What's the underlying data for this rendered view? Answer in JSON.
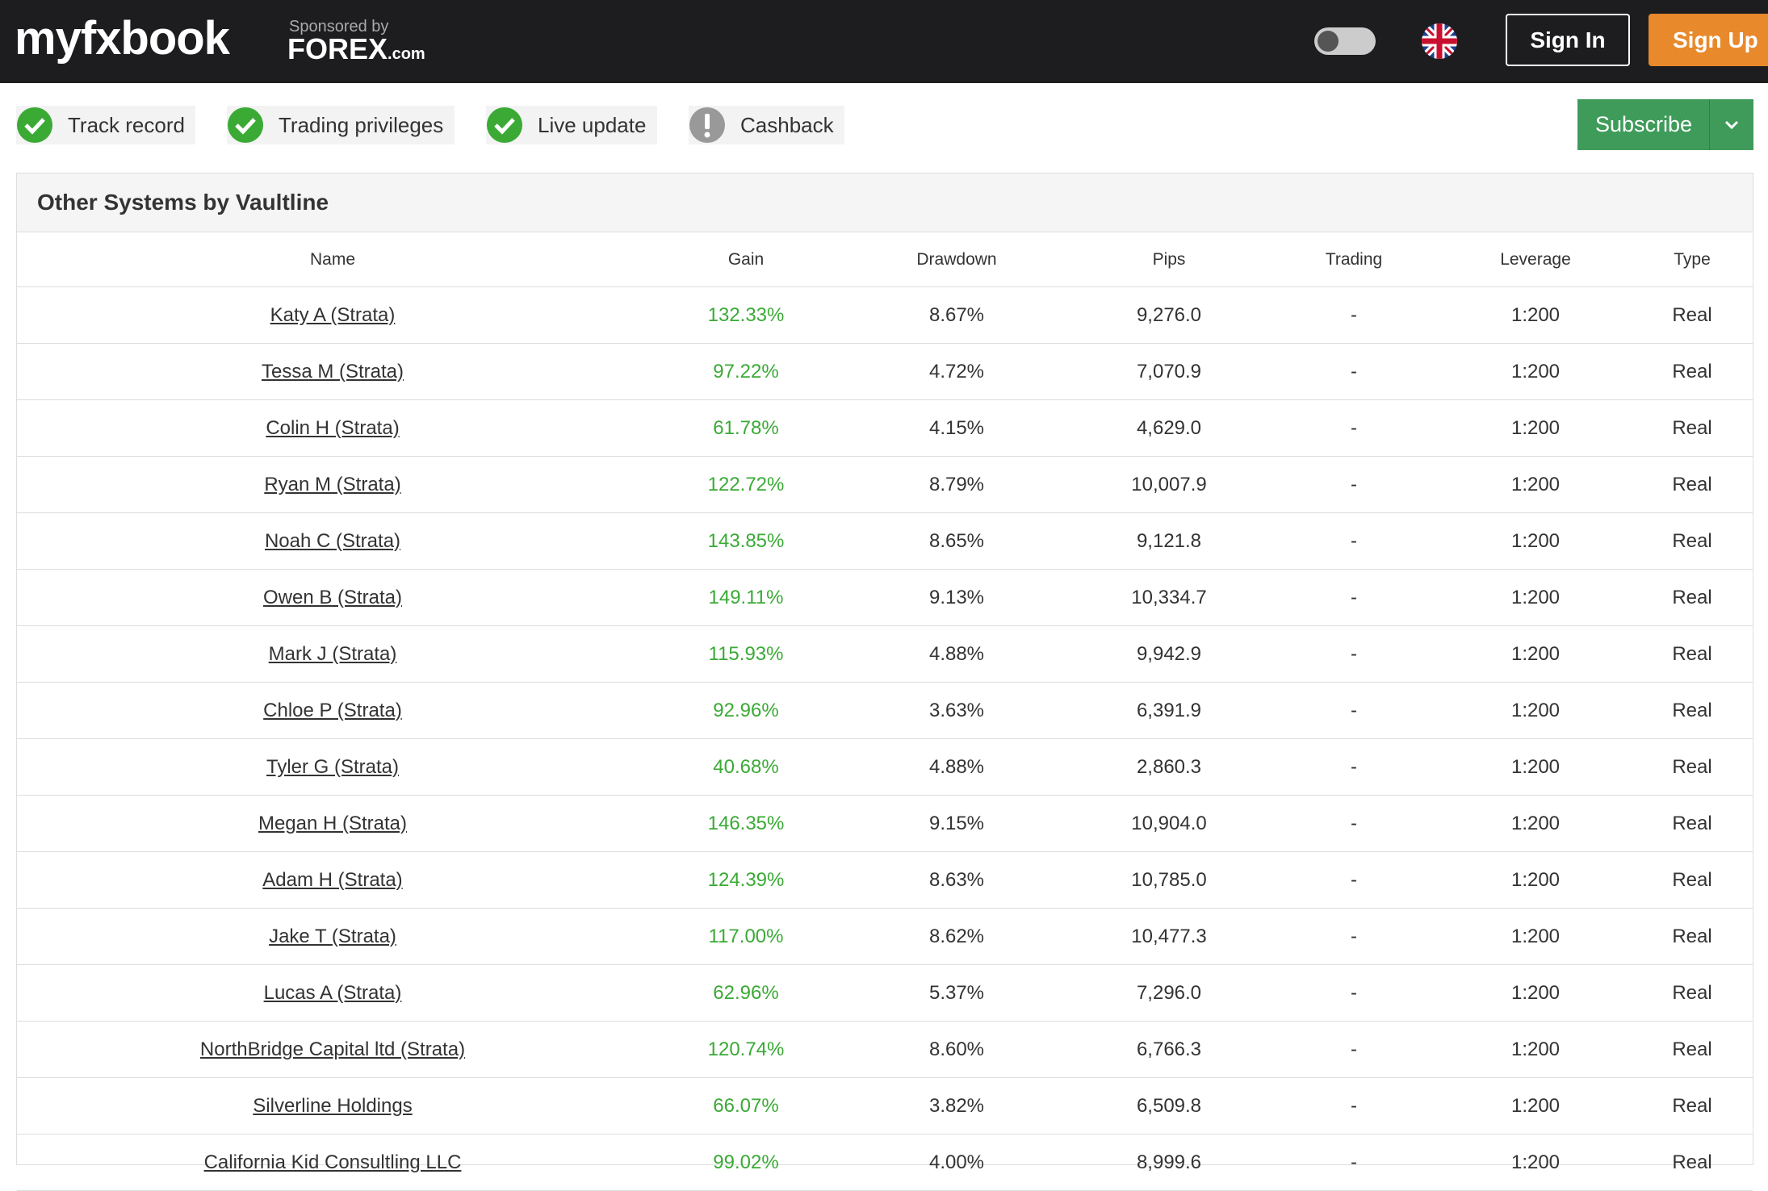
{
  "header": {
    "logo": "myfxbook",
    "sponsor_label": "Sponsored by",
    "sponsor_brand": "FOREX",
    "sponsor_suffix": ".com",
    "sign_in": "Sign In",
    "sign_up": "Sign Up"
  },
  "badges": [
    "Track record",
    "Trading privileges",
    "Live update",
    "Cashback"
  ],
  "subscribe": "Subscribe",
  "panel": {
    "title": "Other Systems by Vaultline"
  },
  "table": {
    "columns": [
      "Name",
      "Gain",
      "Drawdown",
      "Pips",
      "Trading",
      "Leverage",
      "Type"
    ],
    "rows": [
      [
        "Katy A (Strata)",
        "132.33%",
        "8.67%",
        "9,276.0",
        "-",
        "1:200",
        "Real"
      ],
      [
        "Tessa M (Strata)",
        "97.22%",
        "4.72%",
        "7,070.9",
        "-",
        "1:200",
        "Real"
      ],
      [
        "Colin H (Strata)",
        "61.78%",
        "4.15%",
        "4,629.0",
        "-",
        "1:200",
        "Real"
      ],
      [
        "Ryan M (Strata)",
        "122.72%",
        "8.79%",
        "10,007.9",
        "-",
        "1:200",
        "Real"
      ],
      [
        "Noah C (Strata)",
        "143.85%",
        "8.65%",
        "9,121.8",
        "-",
        "1:200",
        "Real"
      ],
      [
        "Owen B (Strata)",
        "149.11%",
        "9.13%",
        "10,334.7",
        "-",
        "1:200",
        "Real"
      ],
      [
        "Mark J (Strata)",
        "115.93%",
        "4.88%",
        "9,942.9",
        "-",
        "1:200",
        "Real"
      ],
      [
        "Chloe P (Strata)",
        "92.96%",
        "3.63%",
        "6,391.9",
        "-",
        "1:200",
        "Real"
      ],
      [
        "Tyler G (Strata)",
        "40.68%",
        "4.88%",
        "2,860.3",
        "-",
        "1:200",
        "Real"
      ],
      [
        "Megan H (Strata)",
        "146.35%",
        "9.15%",
        "10,904.0",
        "-",
        "1:200",
        "Real"
      ],
      [
        "Adam H (Strata)",
        "124.39%",
        "8.63%",
        "10,785.0",
        "-",
        "1:200",
        "Real"
      ],
      [
        "Jake T (Strata)",
        "117.00%",
        "8.62%",
        "10,477.3",
        "-",
        "1:200",
        "Real"
      ],
      [
        "Lucas A (Strata)",
        "62.96%",
        "5.37%",
        "7,296.0",
        "-",
        "1:200",
        "Real"
      ],
      [
        "NorthBridge Capital ltd (Strata)",
        "120.74%",
        "8.60%",
        "6,766.3",
        "-",
        "1:200",
        "Real"
      ],
      [
        "Silverline Holdings",
        "66.07%",
        "3.82%",
        "6,509.8",
        "-",
        "1:200",
        "Real"
      ],
      [
        "California Kid Consultling LLC",
        "99.02%",
        "4.00%",
        "8,999.6",
        "-",
        "1:200",
        "Real"
      ]
    ]
  }
}
